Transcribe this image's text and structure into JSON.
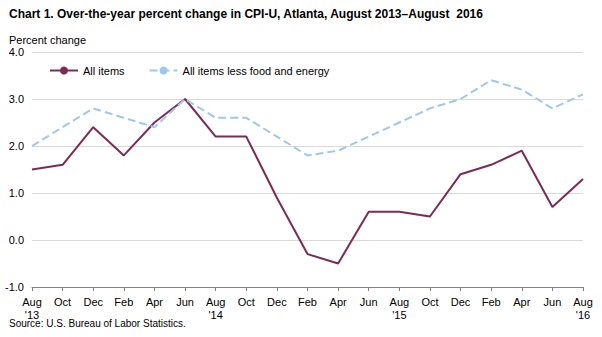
{
  "chart_data": {
    "type": "line",
    "title": "Chart 1. Over-the-year percent change in CPI-U, Atlanta, August 2013–August  2016",
    "y_label": "Percent change",
    "source": "Source: U.S. Bureau of Labor Statistics.",
    "categories": [
      "Aug\n'13",
      "Oct",
      "Dec",
      "Feb",
      "Apr",
      "Jun",
      "Aug\n'14",
      "Oct",
      "Dec",
      "Feb",
      "Apr",
      "Jun",
      "Aug\n'15",
      "Oct",
      "Dec",
      "Feb",
      "Apr",
      "Jun",
      "Aug\n'16"
    ],
    "series": [
      {
        "name": "All items",
        "color": "#7d2a55",
        "line_style": "solid",
        "values": [
          1.5,
          1.6,
          2.4,
          1.8,
          2.5,
          3.0,
          2.2,
          2.2,
          0.9,
          -0.3,
          -0.5,
          0.6,
          0.6,
          0.5,
          1.4,
          1.6,
          1.9,
          0.7,
          1.3
        ]
      },
      {
        "name": "All items less food and energy",
        "color": "#9fc8ee",
        "line_style": "dashed",
        "values": [
          2.0,
          2.4,
          2.8,
          2.6,
          2.4,
          3.0,
          2.6,
          2.6,
          2.2,
          1.8,
          1.9,
          2.2,
          2.5,
          2.8,
          3.0,
          3.4,
          3.2,
          2.8,
          3.1
        ]
      }
    ],
    "ylim": [
      -1,
      4
    ],
    "yticks": [
      {
        "value": -1,
        "label": "-1.0"
      },
      {
        "value": 0,
        "label": "0.0"
      },
      {
        "value": 1,
        "label": "1.0"
      },
      {
        "value": 2,
        "label": "2.0"
      },
      {
        "value": 3,
        "label": "3.0"
      },
      {
        "value": 4,
        "label": "4.0"
      }
    ],
    "grid": true,
    "legend": "upper left",
    "marker": "none"
  }
}
